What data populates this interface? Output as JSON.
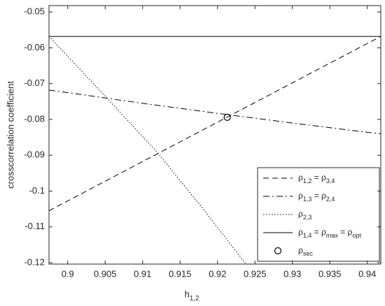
{
  "chart_data": {
    "type": "line",
    "xlabel": "h1,2",
    "ylabel": "crosscorrelation coefficient",
    "xlim": [
      0.8975,
      0.9418
    ],
    "ylim": [
      -0.1204,
      -0.0482
    ],
    "xticks": [
      0.9,
      0.905,
      0.91,
      0.915,
      0.92,
      0.925,
      0.93,
      0.935,
      0.94
    ],
    "yticks": [
      -0.05,
      -0.06,
      -0.07,
      -0.08,
      -0.09,
      -0.1,
      -0.11,
      -0.12
    ],
    "legend": "lower right",
    "series": [
      {
        "name": "ρ1,2 = ρ3,4",
        "color": "#000000",
        "linestyle": "--",
        "x": [
          0.8975,
          0.9418
        ],
        "values": [
          -0.1055,
          -0.0568
        ]
      },
      {
        "name": "ρ1,3 = ρ2,4",
        "color": "#000000",
        "linestyle": "-.",
        "x": [
          0.8975,
          0.9,
          0.91,
          0.92,
          0.93,
          0.94,
          0.9418
        ],
        "values": [
          -0.0718,
          -0.0725,
          -0.0755,
          -0.0783,
          -0.081,
          -0.0836,
          -0.084
        ]
      },
      {
        "name": "ρ2,3",
        "color": "#000000",
        "linestyle": ":",
        "x": [
          0.8975,
          0.905,
          0.912,
          0.918,
          0.9238
        ],
        "values": [
          -0.0568,
          -0.0735,
          -0.0893,
          -0.1048,
          -0.1204
        ]
      },
      {
        "name": "ρ1,4 = ρmax = ρopt",
        "color": "#000000",
        "linestyle": "-",
        "x": [
          0.8975,
          0.9418
        ],
        "values": [
          -0.0568,
          -0.0568
        ]
      },
      {
        "name": "ρsec",
        "color": "#000000",
        "marker": "o",
        "x": [
          0.9213
        ],
        "values": [
          -0.0794
        ]
      }
    ]
  }
}
